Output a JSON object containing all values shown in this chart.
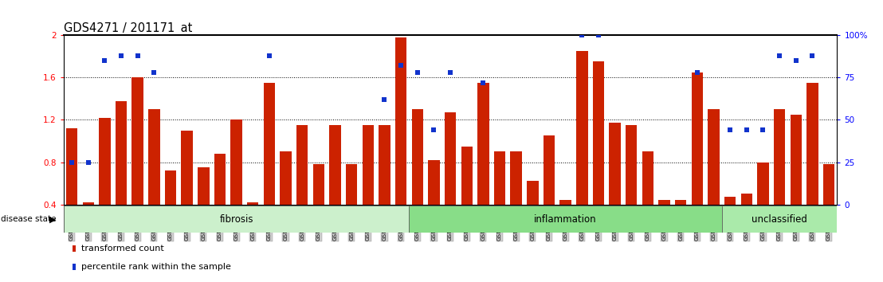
{
  "title": "GDS4271 / 201171_at",
  "samples": [
    "GSM380382",
    "GSM380383",
    "GSM380384",
    "GSM380385",
    "GSM380386",
    "GSM380387",
    "GSM380388",
    "GSM380389",
    "GSM380390",
    "GSM380391",
    "GSM380392",
    "GSM380393",
    "GSM380394",
    "GSM380395",
    "GSM380396",
    "GSM380397",
    "GSM380398",
    "GSM380399",
    "GSM380400",
    "GSM380401",
    "GSM380402",
    "GSM380403",
    "GSM380404",
    "GSM380405",
    "GSM380406",
    "GSM380407",
    "GSM380408",
    "GSM380409",
    "GSM380410",
    "GSM380411",
    "GSM380412",
    "GSM380413",
    "GSM380414",
    "GSM380415",
    "GSM380416",
    "GSM380417",
    "GSM380418",
    "GSM380419",
    "GSM380420",
    "GSM380421",
    "GSM380422",
    "GSM380423",
    "GSM380424",
    "GSM380425",
    "GSM380426",
    "GSM380427",
    "GSM380428"
  ],
  "bar_values": [
    1.12,
    0.42,
    1.22,
    1.38,
    1.6,
    1.3,
    0.72,
    1.1,
    0.75,
    0.88,
    1.2,
    0.42,
    1.55,
    0.9,
    1.15,
    0.78,
    1.15,
    0.78,
    1.15,
    1.15,
    1.98,
    1.3,
    0.82,
    1.27,
    0.95,
    1.55,
    0.9,
    0.9,
    0.62,
    1.05,
    0.44,
    1.85,
    1.75,
    1.17,
    1.15,
    0.9,
    0.44,
    0.44,
    1.65,
    1.3,
    0.47,
    0.5,
    0.8,
    1.3,
    1.25,
    1.55,
    0.78
  ],
  "blue_squares": [
    [
      null,
      25
    ],
    [
      null,
      25
    ],
    [
      85,
      null
    ],
    [
      88,
      null
    ],
    [
      88,
      null
    ],
    [
      78,
      null
    ],
    [
      null,
      null
    ],
    [
      null,
      null
    ],
    [
      null,
      null
    ],
    [
      null,
      null
    ],
    [
      null,
      null
    ],
    [
      null,
      null
    ],
    [
      88,
      null
    ],
    [
      null,
      null
    ],
    [
      null,
      null
    ],
    [
      null,
      null
    ],
    [
      null,
      null
    ],
    [
      null,
      null
    ],
    [
      null,
      null
    ],
    [
      62,
      null
    ],
    [
      82,
      null
    ],
    [
      78,
      null
    ],
    [
      null,
      44
    ],
    [
      78,
      null
    ],
    [
      null,
      null
    ],
    [
      72,
      null
    ],
    [
      null,
      null
    ],
    [
      null,
      null
    ],
    [
      null,
      null
    ],
    [
      null,
      null
    ],
    [
      null,
      null
    ],
    [
      100,
      null
    ],
    [
      100,
      null
    ],
    [
      null,
      null
    ],
    [
      null,
      null
    ],
    [
      null,
      null
    ],
    [
      null,
      null
    ],
    [
      null,
      null
    ],
    [
      78,
      null
    ],
    [
      null,
      null
    ],
    [
      null,
      44
    ],
    [
      null,
      44
    ],
    [
      null,
      44
    ],
    [
      88,
      null
    ],
    [
      85,
      null
    ],
    [
      88,
      null
    ],
    [
      null,
      null
    ]
  ],
  "groups": [
    {
      "label": "fibrosis",
      "start": 0,
      "end": 20,
      "color": "#ccf0cc"
    },
    {
      "label": "inflammation",
      "start": 21,
      "end": 39,
      "color": "#88dd88"
    },
    {
      "label": "unclassified",
      "start": 40,
      "end": 46,
      "color": "#aaeaaa"
    }
  ],
  "ylim": [
    0.4,
    2.0
  ],
  "yticks_left": [
    0.4,
    0.8,
    1.2,
    1.6,
    2.0
  ],
  "ytick_labels_left": [
    "0.4",
    "0.8",
    "1.2",
    "1.6",
    "2"
  ],
  "yticks_right_pct": [
    0,
    25,
    50,
    75,
    100
  ],
  "ytick_labels_right": [
    "0",
    "25",
    "50",
    "75",
    "100%"
  ],
  "hlines": [
    0.8,
    1.2,
    1.6
  ],
  "bar_color": "#cc2200",
  "blue_color": "#1133cc",
  "bar_width": 0.7
}
